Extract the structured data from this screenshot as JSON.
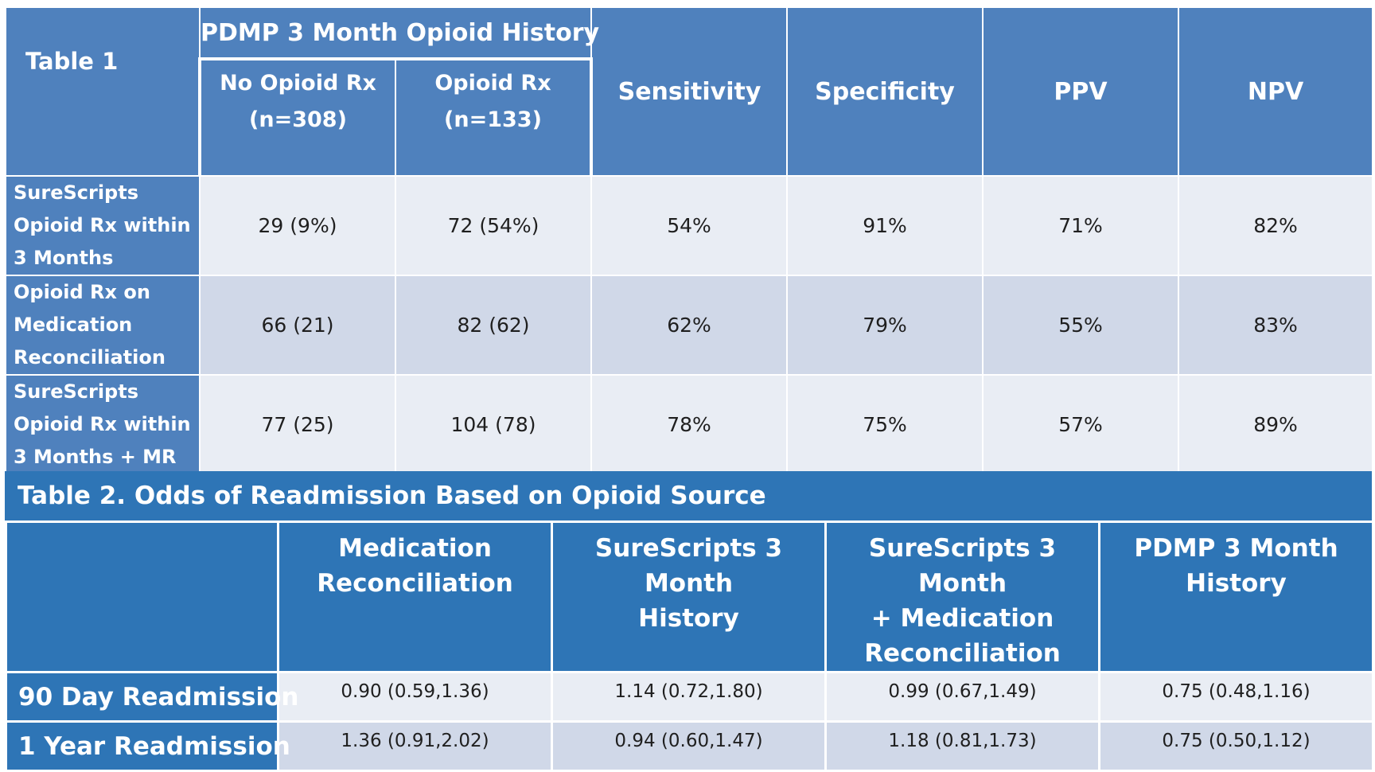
{
  "table1": {
    "title": "Table 1",
    "group_header": "PDMP 3 Month Opioid History",
    "sub_headers": [
      {
        "line1": "No Opioid Rx",
        "line2": "(n=308)"
      },
      {
        "line1": "Opioid Rx",
        "line2": "(n=133)"
      }
    ],
    "metrics": [
      "Sensitivity",
      "Specificity",
      "PPV",
      "NPV"
    ],
    "rows": [
      {
        "label_lines": [
          "SureScripts",
          "Opioid  Rx within",
          "3 Months"
        ],
        "cells": [
          "29 (9%)",
          "72 (54%)",
          "54%",
          "91%",
          "71%",
          "82%"
        ]
      },
      {
        "label_lines": [
          "Opioid  Rx on",
          "Medication",
          "Reconciliation"
        ],
        "cells": [
          "66 (21)",
          "82 (62)",
          "62%",
          "79%",
          "55%",
          "83%"
        ]
      },
      {
        "label_lines": [
          "SureScripts",
          "Opioid  Rx within",
          "3 Months + MR"
        ],
        "cells": [
          "77 (25)",
          "104 (78)",
          "78%",
          "75%",
          "57%",
          "89%"
        ]
      }
    ]
  },
  "table2": {
    "title": "Table 2. Odds of Readmission Based on Opioid Source",
    "columns": [
      {
        "lines": [
          "Medication",
          "Reconciliation"
        ]
      },
      {
        "lines": [
          "SureScripts 3 Month",
          "History"
        ]
      },
      {
        "lines": [
          "SureScripts 3 Month",
          "+ Medication",
          "Reconciliation"
        ]
      },
      {
        "lines": [
          "PDMP 3 Month",
          "History"
        ]
      }
    ],
    "rows": [
      {
        "label": "90 Day Readmission",
        "cells": [
          "0.90  (0.59,1.36)",
          "1.14  (0.72,1.80)",
          "0.99  (0.67,1.49)",
          "0.75  (0.48,1.16)"
        ]
      },
      {
        "label": "1 Year Readmission",
        "cells": [
          "1.36  (0.91,2.02)",
          "0.94  (0.60,1.47)",
          "1.18  (0.81,1.73)",
          "0.75  (0.50,1.12)"
        ]
      }
    ]
  }
}
